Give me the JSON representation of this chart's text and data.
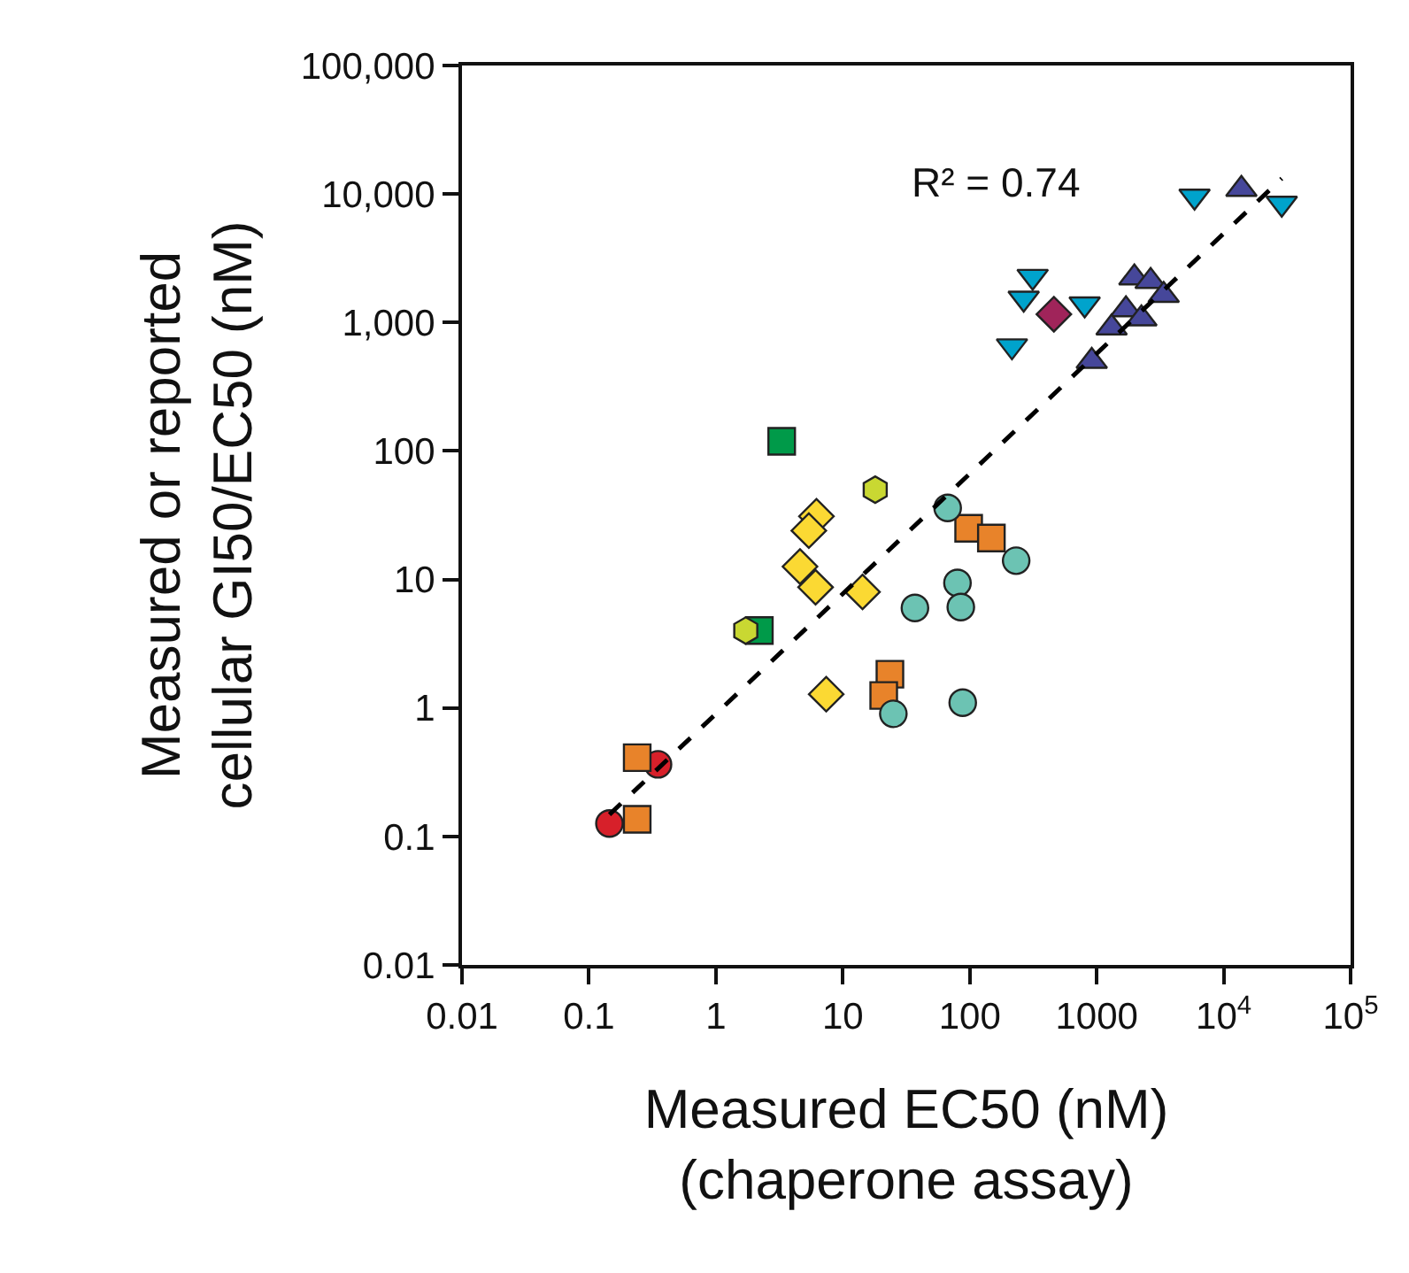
{
  "chart_data": {
    "type": "scatter",
    "log": "xy",
    "grid": false,
    "xlabel": "Measured EC50 (nM)\n(chaperone assay)",
    "ylabel": "Measured or reported\ncellular GI50/EC50 (nM)",
    "annotations": [
      "R² = 0.74"
    ],
    "xlim": [
      0.01,
      100000
    ],
    "ylim": [
      0.01,
      100000
    ],
    "xticks": [
      0.01,
      0.1,
      1,
      10,
      100,
      1000,
      {
        "value": 10000,
        "label": "10$^{4}$"
      },
      {
        "value": 100000,
        "label": "10$^{5}$"
      }
    ],
    "yticks": [
      0.01,
      0.1,
      1,
      10,
      100,
      {
        "value": 1000,
        "label": "1,000"
      },
      {
        "value": 10000,
        "label": "10,000"
      },
      {
        "value": 100000,
        "label": "100,000"
      }
    ],
    "series": [
      {
        "color": "#d7202a",
        "marker": "circle",
        "x": [
          0.145,
          0.35
        ],
        "values": [
          0.126,
          0.364
        ]
      },
      {
        "color": "#e8832a",
        "marker": "square",
        "x": [
          0.24,
          0.24,
          23.5,
          21,
          98,
          148
        ],
        "values": [
          0.41,
          0.136,
          1.83,
          1.25,
          25,
          21
        ]
      },
      {
        "color": "#6cc3b3",
        "marker": "circle",
        "x": [
          67,
          232,
          80,
          85,
          37,
          25,
          88
        ],
        "values": [
          36,
          14,
          9.4,
          6.1,
          6.0,
          0.9,
          1.1
        ]
      },
      {
        "color": "#fbd933",
        "marker": "diamond",
        "x": [
          6.2,
          5.4,
          4.6,
          6.1,
          14.3,
          7.4
        ],
        "values": [
          31,
          24,
          12.6,
          8.7,
          8.0,
          1.28
        ]
      },
      {
        "color": "#009a49",
        "marker": "square",
        "x": [
          3.3,
          2.2
        ],
        "values": [
          119,
          4.0
        ]
      },
      {
        "color": "#c9d832",
        "x": [
          18,
          1.72
        ],
        "values": [
          50,
          4.0
        ]
      },
      {
        "color": "#a0245a",
        "marker": "diamond",
        "x": [
          460
        ],
        "values": [
          1160
        ]
      },
      {
        "color": "#00a3cc",
        "marker": "triangle-down",
        "x": [
          5900,
          28700,
          313,
          266,
          804,
          215
        ],
        "values": [
          9600,
          8450,
          2280,
          1540,
          1390,
          656
        ]
      },
      {
        "color": "#46479a",
        "marker": "triangle",
        "x": [
          13800,
          1980,
          2660,
          3370,
          1700,
          2250,
          1310,
          914
        ],
        "values": [
          10900,
          2230,
          2090,
          1630,
          1260,
          1070,
          910,
          500
        ]
      },
      {
        "type": "line",
        "color": "#000000",
        "marker": "none",
        "line_style": "dashed",
        "x": [
          0.145,
          28700
        ],
        "values": [
          0.148,
          13200
        ]
      }
    ]
  }
}
